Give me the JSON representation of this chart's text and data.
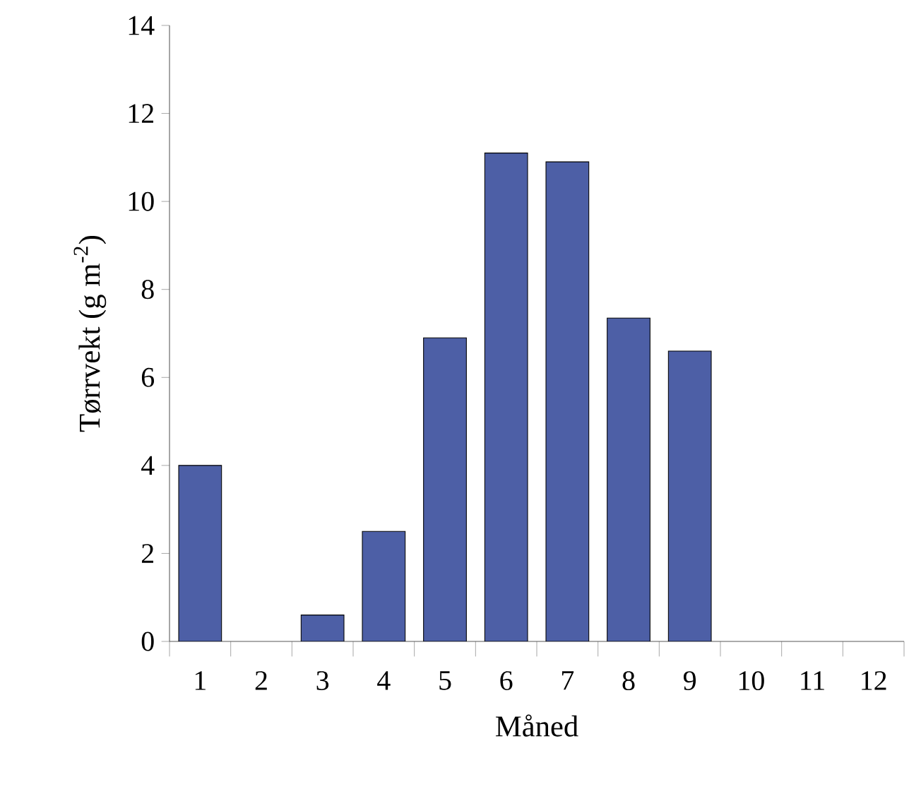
{
  "chart_data": {
    "type": "bar",
    "xlabel": "Måned",
    "ylabel": "Tørrvekt (g m$^{-2}$)",
    "categories": [
      "1",
      "2",
      "3",
      "4",
      "5",
      "6",
      "7",
      "8",
      "9",
      "10",
      "11",
      "12"
    ],
    "values": [
      4.0,
      null,
      0.6,
      2.5,
      6.9,
      11.1,
      10.9,
      7.35,
      6.6,
      null,
      null,
      null
    ],
    "color": "#4d5fa6",
    "ylim": [
      0,
      14
    ],
    "yticks": [
      0,
      2,
      4,
      6,
      8,
      10,
      12,
      14
    ],
    "grid": false
  }
}
